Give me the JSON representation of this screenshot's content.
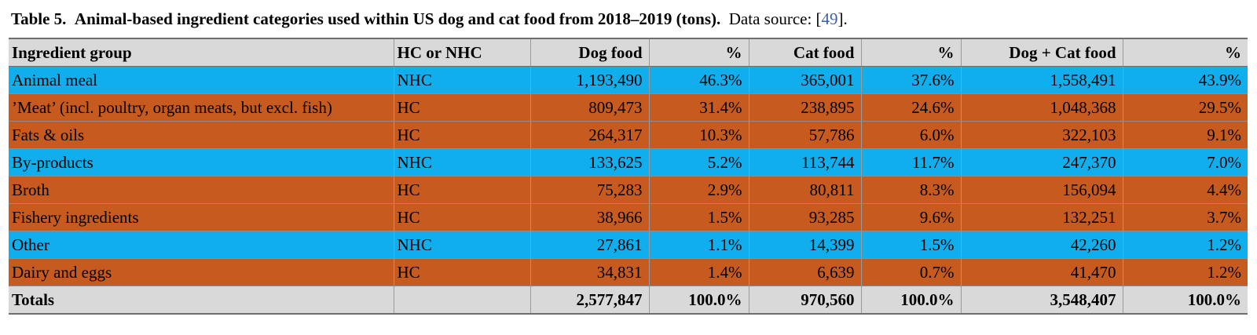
{
  "caption": {
    "label": "Table 5.",
    "title": "Animal-based ingredient categories used within US dog and cat food from 2018–2019 (tons).",
    "source_prefix": "Data source: [",
    "source_ref": "49",
    "source_suffix": "]."
  },
  "table": {
    "headers": [
      "Ingredient group",
      "HC or NHC",
      "Dog food",
      "%",
      "Cat food",
      "%",
      "Dog + Cat food",
      "%"
    ],
    "rows": [
      {
        "group": "Animal meal",
        "type": "NHC",
        "dog": "1,193,490",
        "dog_pct": "46.3%",
        "cat": "365,001",
        "cat_pct": "37.6%",
        "both": "1,558,491",
        "both_pct": "43.9%"
      },
      {
        "group": "’Meat’ (incl. poultry, organ meats, but excl. fish)",
        "type": "HC",
        "dog": "809,473",
        "dog_pct": "31.4%",
        "cat": "238,895",
        "cat_pct": "24.6%",
        "both": "1,048,368",
        "both_pct": "29.5%"
      },
      {
        "group": "Fats & oils",
        "type": "HC",
        "dog": "264,317",
        "dog_pct": "10.3%",
        "cat": "57,786",
        "cat_pct": "6.0%",
        "both": "322,103",
        "both_pct": "9.1%"
      },
      {
        "group": "By-products",
        "type": "NHC",
        "dog": "133,625",
        "dog_pct": "5.2%",
        "cat": "113,744",
        "cat_pct": "11.7%",
        "both": "247,370",
        "both_pct": "7.0%"
      },
      {
        "group": "Broth",
        "type": "HC",
        "dog": "75,283",
        "dog_pct": "2.9%",
        "cat": "80,811",
        "cat_pct": "8.3%",
        "both": "156,094",
        "both_pct": "4.4%"
      },
      {
        "group": "Fishery ingredients",
        "type": "HC",
        "dog": "38,966",
        "dog_pct": "1.5%",
        "cat": "93,285",
        "cat_pct": "9.6%",
        "both": "132,251",
        "both_pct": "3.7%"
      },
      {
        "group": "Other",
        "type": "NHC",
        "dog": "27,861",
        "dog_pct": "1.1%",
        "cat": "14,399",
        "cat_pct": "1.5%",
        "both": "42,260",
        "both_pct": "1.2%"
      },
      {
        "group": "Dairy and eggs",
        "type": "HC",
        "dog": "34,831",
        "dog_pct": "1.4%",
        "cat": "6,639",
        "cat_pct": "0.7%",
        "both": "41,470",
        "both_pct": "1.2%"
      }
    ],
    "totals": {
      "group": "Totals",
      "type": "",
      "dog": "2,577,847",
      "dog_pct": "100.0%",
      "cat": "970,560",
      "cat_pct": "100.0%",
      "both": "3,548,407",
      "both_pct": "100.0%"
    }
  },
  "colors": {
    "nhc_row": "#10aeec",
    "hc_row": "#c65a1f",
    "header_bg": "#d9d9d9",
    "link": "#3b5fa8"
  }
}
